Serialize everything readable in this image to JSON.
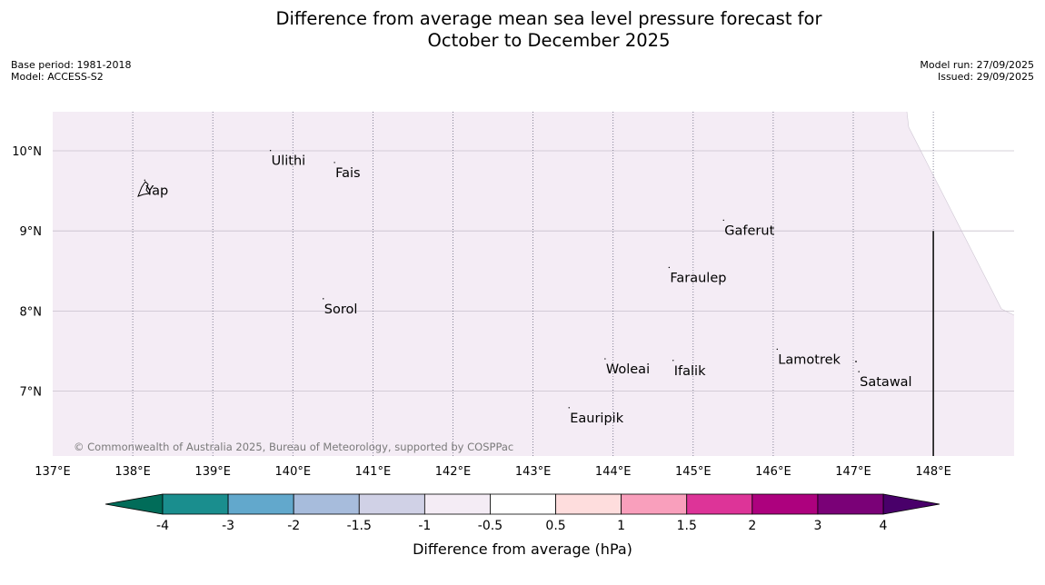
{
  "header": {
    "title_line1": "Difference from average mean sea level pressure forecast for",
    "title_line2": "October to December 2025",
    "base_period": "Base period: 1981-2018",
    "model": "Model: ACCESS-S2",
    "model_run": "Model run: 27/09/2025",
    "issued": "Issued: 29/09/2025"
  },
  "map": {
    "lon_labels": [
      "137°E",
      "138°E",
      "139°E",
      "140°E",
      "141°E",
      "142°E",
      "143°E",
      "144°E",
      "145°E",
      "146°E",
      "147°E",
      "148°E"
    ],
    "lon_values": [
      137,
      138,
      139,
      140,
      141,
      142,
      143,
      144,
      145,
      146,
      147,
      148
    ],
    "lat_labels": [
      "10°N",
      "9°N",
      "8°N",
      "7°N"
    ],
    "lat_values": [
      10,
      9,
      8,
      7
    ],
    "extent": {
      "lon_min": 137,
      "lon_max": 149,
      "lat_min": 6.2,
      "lat_max": 10.5
    },
    "fill_color": "#f4ecf5",
    "places": [
      {
        "name": "Yap",
        "lon": 138.15,
        "lat": 9.52
      },
      {
        "name": "Ulithi",
        "lon": 139.72,
        "lat": 9.89
      },
      {
        "name": "Fais",
        "lon": 140.52,
        "lat": 9.74
      },
      {
        "name": "Gaferut",
        "lon": 145.38,
        "lat": 9.02
      },
      {
        "name": "Faraulep",
        "lon": 144.7,
        "lat": 8.43
      },
      {
        "name": "Sorol",
        "lon": 140.38,
        "lat": 8.04
      },
      {
        "name": "Woleai",
        "lon": 143.9,
        "lat": 7.29
      },
      {
        "name": "Ifalik",
        "lon": 144.75,
        "lat": 7.27
      },
      {
        "name": "Lamotrek",
        "lon": 146.05,
        "lat": 7.41
      },
      {
        "name": "Satawal",
        "lon": 147.07,
        "lat": 7.13
      },
      {
        "name": "Eauripik",
        "lon": 143.45,
        "lat": 6.68
      }
    ],
    "copyright": "© Commonwealth of Australia 2025, Bureau of Meteorology, supported by COSPPac"
  },
  "colorbar": {
    "labels": [
      "-4",
      "-3",
      "-2",
      "-1.5",
      "-1",
      "-0.5",
      "0.5",
      "1",
      "1.5",
      "2",
      "3",
      "4"
    ],
    "colors": [
      "#1a8e8e",
      "#62a8cc",
      "#a7bcdc",
      "#d0d1e6",
      "#f4ecf5",
      "#ffffff",
      "#fedddd",
      "#f99fbc",
      "#dd3498",
      "#ad017e",
      "#7a0177"
    ],
    "under_color": "#016c59",
    "over_color": "#49006a",
    "title": "Difference from average (hPa)"
  }
}
